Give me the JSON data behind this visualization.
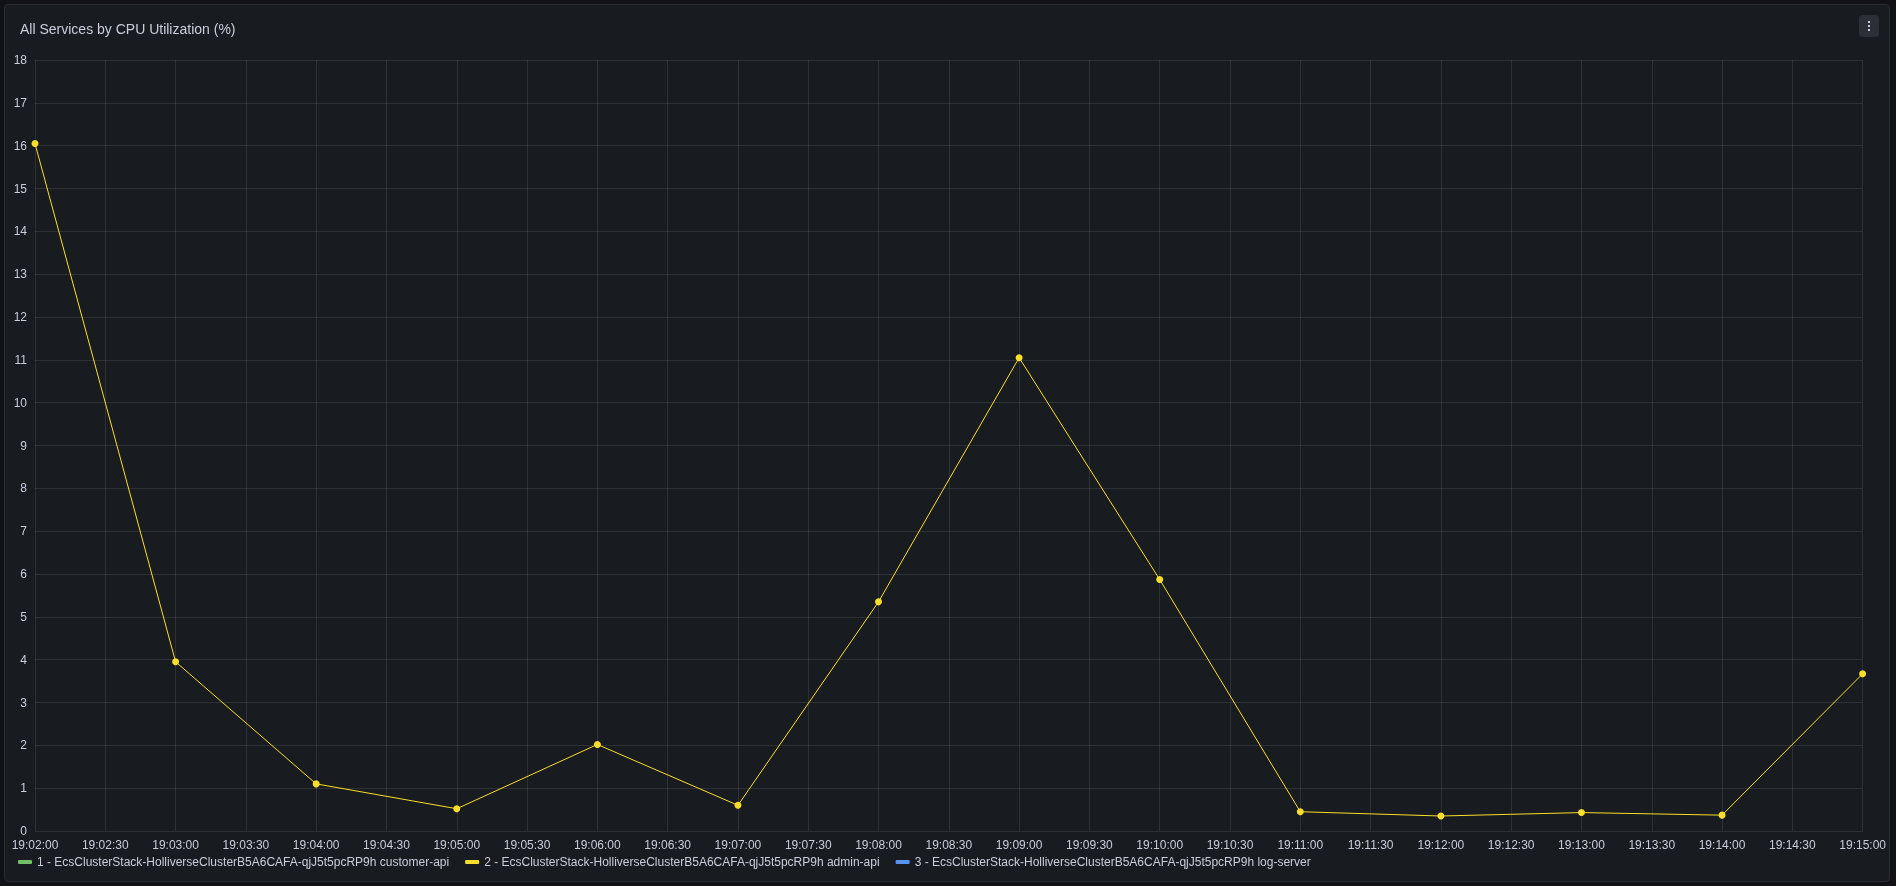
{
  "chart_data": {
    "type": "line",
    "title": "All Services by CPU Utilization (%)",
    "x": [
      19.033333,
      19.05,
      19.066667,
      19.083333,
      19.1,
      19.116667,
      19.133333,
      19.15,
      19.166667,
      19.183333,
      19.2,
      19.216667,
      19.233333,
      19.25
    ],
    "series": [
      {
        "name": "1 - EcsClusterStack-HolliverseClusterB5A6CAFA-qjJ5t5pcRP9h customer-api",
        "color": "#73bf69",
        "values": [
          null,
          null,
          null,
          null,
          null,
          null,
          null,
          null,
          null,
          null,
          null,
          null,
          null,
          null
        ]
      },
      {
        "name": "2 - EcsClusterStack-HolliverseClusterB5A6CAFA-qjJ5t5pcRP9h admin-api",
        "color": "#fade2a",
        "values": [
          16.05,
          3.95,
          1.1,
          0.52,
          2.02,
          0.6,
          5.35,
          11.05,
          5.87,
          0.45,
          0.35,
          0.43,
          0.37,
          3.67
        ]
      },
      {
        "name": "3 - EcsClusterStack-HolliverseClusterB5A6CAFA-qjJ5t5pcRP9h log-server",
        "color": "#5794f2",
        "values": [
          null,
          null,
          null,
          null,
          null,
          null,
          null,
          null,
          null,
          null,
          null,
          null,
          null,
          null
        ]
      }
    ],
    "xlim": [
      19.033333,
      19.25
    ],
    "xticks": [
      {
        "value": 19.033333,
        "label": "19:02:00"
      },
      {
        "value": 19.041667,
        "label": "19:02:30"
      },
      {
        "value": 19.05,
        "label": "19:03:00"
      },
      {
        "value": 19.058333,
        "label": "19:03:30"
      },
      {
        "value": 19.066667,
        "label": "19:04:00"
      },
      {
        "value": 19.075,
        "label": "19:04:30"
      },
      {
        "value": 19.083333,
        "label": "19:05:00"
      },
      {
        "value": 19.091667,
        "label": "19:05:30"
      },
      {
        "value": 19.1,
        "label": "19:06:00"
      },
      {
        "value": 19.108333,
        "label": "19:06:30"
      },
      {
        "value": 19.116667,
        "label": "19:07:00"
      },
      {
        "value": 19.125,
        "label": "19:07:30"
      },
      {
        "value": 19.133333,
        "label": "19:08:00"
      },
      {
        "value": 19.141667,
        "label": "19:08:30"
      },
      {
        "value": 19.15,
        "label": "19:09:00"
      },
      {
        "value": 19.158333,
        "label": "19:09:30"
      },
      {
        "value": 19.166667,
        "label": "19:10:00"
      },
      {
        "value": 19.175,
        "label": "19:10:30"
      },
      {
        "value": 19.183333,
        "label": "19:11:00"
      },
      {
        "value": 19.191667,
        "label": "19:11:30"
      },
      {
        "value": 19.2,
        "label": "19:12:00"
      },
      {
        "value": 19.208333,
        "label": "19:12:30"
      },
      {
        "value": 19.216667,
        "label": "19:13:00"
      },
      {
        "value": 19.225,
        "label": "19:13:30"
      },
      {
        "value": 19.233333,
        "label": "19:14:00"
      },
      {
        "value": 19.241667,
        "label": "19:14:30"
      },
      {
        "value": 19.25,
        "label": "19:15:00"
      }
    ],
    "ylim": [
      0,
      18
    ],
    "yticks": [
      0,
      1,
      2,
      3,
      4,
      5,
      6,
      7,
      8,
      9,
      10,
      11,
      12,
      13,
      14,
      15,
      16,
      17,
      18
    ],
    "grid": true,
    "legend": "bottom left",
    "marker": "circle",
    "line_style": "solid"
  }
}
